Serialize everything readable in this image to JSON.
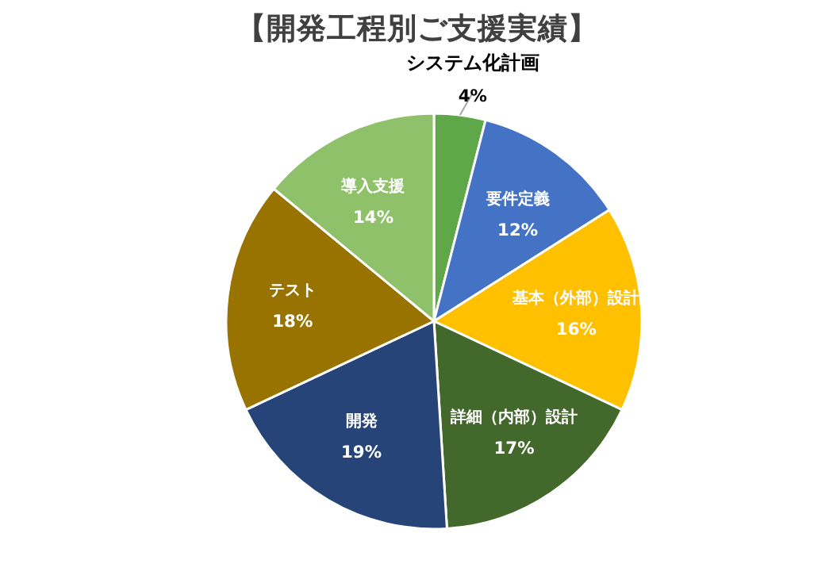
{
  "chart_data": {
    "type": "pie",
    "title": "【開発工程別ご支援実績】",
    "categories": [
      "システム化計画",
      "要件定義",
      "基本（外部）設計",
      "詳細（内部）設計",
      "開発",
      "テスト",
      "導入支援"
    ],
    "values": [
      4,
      12,
      16,
      17,
      19,
      18,
      14
    ],
    "value_labels": [
      "4%",
      "12%",
      "16%",
      "17%",
      "19%",
      "18%",
      "14%"
    ],
    "colors": [
      "#5ea84a",
      "#4472c4",
      "#ffc000",
      "#43682b",
      "#264478",
      "#997300",
      "#8fc16a"
    ]
  }
}
